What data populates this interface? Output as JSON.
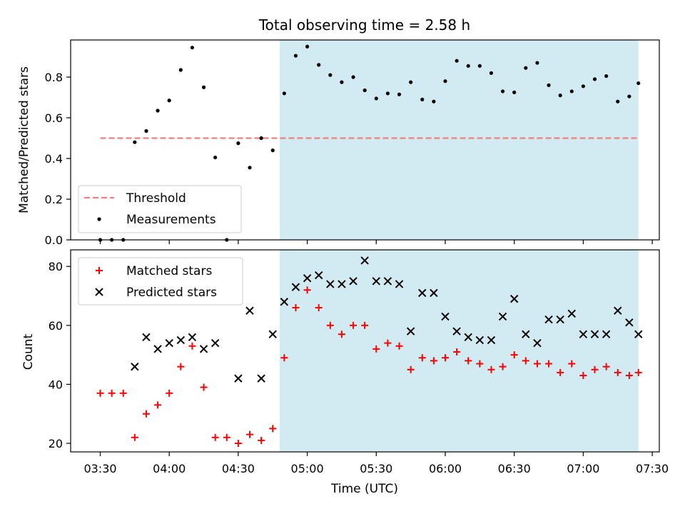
{
  "title": "Total observing time = 2.58 h",
  "chart_data": [
    {
      "type": "scatter",
      "ylabel": "Matched/Predicted stars",
      "ylim": [
        0,
        1.0
      ],
      "yticks": [
        0.0,
        0.2,
        0.4,
        0.6,
        0.8
      ],
      "ytick_labels": [
        "0.0",
        "0.2",
        "0.4",
        "0.6",
        "0.8"
      ],
      "legend_placement": "lower-left",
      "shaded_interval": [
        "04:48",
        "07:24"
      ],
      "series": [
        {
          "name": "Threshold",
          "kind": "dashed-line",
          "color": "#f08080",
          "x": [
            "03:30",
            "07:24"
          ],
          "y": [
            0.5,
            0.5
          ]
        },
        {
          "name": "Measurements",
          "kind": "dots",
          "color": "#000000",
          "x": [
            "03:30",
            "03:35",
            "03:40",
            "03:45",
            "03:50",
            "03:55",
            "04:00",
            "04:05",
            "04:10",
            "04:15",
            "04:20",
            "04:25",
            "04:30",
            "04:35",
            "04:40",
            "04:45",
            "04:50",
            "04:55",
            "05:00",
            "05:05",
            "05:10",
            "05:15",
            "05:20",
            "05:25",
            "05:30",
            "05:35",
            "05:40",
            "05:45",
            "05:50",
            "05:55",
            "06:00",
            "06:05",
            "06:10",
            "06:15",
            "06:20",
            "06:25",
            "06:30",
            "06:35",
            "06:40",
            "06:45",
            "06:50",
            "06:55",
            "07:00",
            "07:05",
            "07:10",
            "07:15",
            "07:20",
            "07:24"
          ],
          "y": [
            0.0,
            0.0,
            0.0,
            0.48,
            0.535,
            0.635,
            0.685,
            0.835,
            0.945,
            0.75,
            0.405,
            0.0,
            0.475,
            0.355,
            0.5,
            0.44,
            0.72,
            0.905,
            0.95,
            0.86,
            0.81,
            0.775,
            0.8,
            0.735,
            0.695,
            0.72,
            0.715,
            0.775,
            0.69,
            0.68,
            0.78,
            0.88,
            0.855,
            0.855,
            0.82,
            0.73,
            0.725,
            0.845,
            0.87,
            0.76,
            0.71,
            0.73,
            0.755,
            0.79,
            0.805,
            0.68,
            0.705,
            0.77
          ]
        }
      ]
    },
    {
      "type": "scatter",
      "xlabel": "Time (UTC)",
      "ylabel": "Count",
      "ylim": [
        17,
        86
      ],
      "yticks": [
        20,
        40,
        60,
        80
      ],
      "ytick_labels": [
        "20",
        "40",
        "60",
        "80"
      ],
      "xtick_labels": [
        "03:30",
        "04:00",
        "04:30",
        "05:00",
        "05:30",
        "06:00",
        "06:30",
        "07:00",
        "07:30"
      ],
      "legend_placement": "top-left",
      "shaded_interval": [
        "04:48",
        "07:24"
      ],
      "series": [
        {
          "name": "Matched stars",
          "kind": "plus",
          "color": "#ff0000",
          "x": [
            "03:30",
            "03:35",
            "03:40",
            "03:45",
            "03:50",
            "03:55",
            "04:00",
            "04:05",
            "04:10",
            "04:15",
            "04:20",
            "04:25",
            "04:30",
            "04:35",
            "04:40",
            "04:45",
            "04:50",
            "04:55",
            "05:00",
            "05:05",
            "05:10",
            "05:15",
            "05:20",
            "05:25",
            "05:30",
            "05:35",
            "05:40",
            "05:45",
            "05:50",
            "05:55",
            "06:00",
            "06:05",
            "06:10",
            "06:15",
            "06:20",
            "06:25",
            "06:30",
            "06:35",
            "06:40",
            "06:45",
            "06:50",
            "06:55",
            "07:00",
            "07:05",
            "07:10",
            "07:15",
            "07:20",
            "07:24"
          ],
          "y": [
            37,
            37,
            37,
            22,
            30,
            33,
            37,
            46,
            53,
            39,
            22,
            22,
            20,
            23,
            21,
            25,
            49,
            66,
            72,
            66,
            60,
            57,
            60,
            60,
            52,
            54,
            53,
            45,
            49,
            48,
            49,
            51,
            48,
            47,
            45,
            46,
            50,
            48,
            47,
            47,
            44,
            47,
            43,
            45,
            46,
            44,
            43,
            44
          ]
        },
        {
          "name": "Predicted stars",
          "kind": "x",
          "color": "#000000",
          "x": [
            "03:45",
            "03:50",
            "03:55",
            "04:00",
            "04:05",
            "04:10",
            "04:15",
            "04:20",
            "04:30",
            "04:35",
            "04:40",
            "04:45",
            "04:50",
            "04:55",
            "05:00",
            "05:05",
            "05:10",
            "05:15",
            "05:20",
            "05:25",
            "05:30",
            "05:35",
            "05:40",
            "05:45",
            "05:50",
            "05:55",
            "06:00",
            "06:05",
            "06:10",
            "06:15",
            "06:20",
            "06:25",
            "06:30",
            "06:35",
            "06:40",
            "06:45",
            "06:50",
            "06:55",
            "07:00",
            "07:05",
            "07:10",
            "07:15",
            "07:20",
            "07:24"
          ],
          "y": [
            46,
            56,
            52,
            54,
            55,
            56,
            52,
            54,
            42,
            65,
            42,
            57,
            68,
            73,
            76,
            77,
            74,
            74,
            75,
            82,
            75,
            75,
            74,
            58,
            71,
            71,
            63,
            58,
            56,
            55,
            55,
            63,
            69,
            57,
            54,
            62,
            62,
            64,
            57,
            57,
            57,
            65,
            61,
            57
          ]
        }
      ]
    }
  ]
}
